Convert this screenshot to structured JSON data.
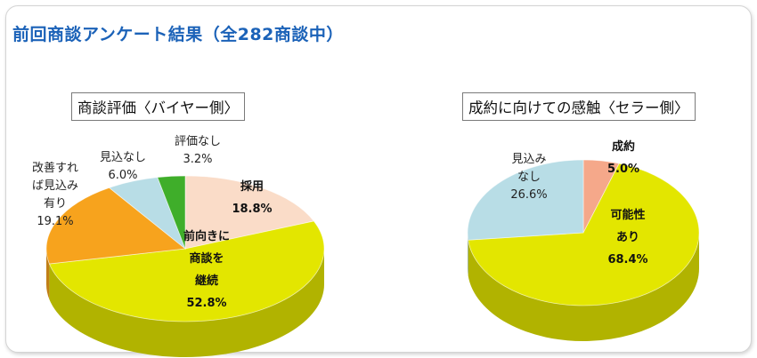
{
  "main_title": "前回商談アンケート結果（全282商談中）",
  "colors": {
    "title_blue": "#1b62b8",
    "yellow": "#e3e600",
    "yellow_side": "#b9bb00",
    "orange": "#f7a31d",
    "light_blue": "#b8dde6",
    "green": "#3fae2a",
    "pink": "#fadcc8",
    "salmon": "#f5a88a"
  },
  "chart_data": [
    {
      "type": "pie",
      "title": "商談評価〈バイヤー側〉",
      "slices": [
        {
          "label_lines": [
            "採用"
          ],
          "pct": "18.8%",
          "value": 18.8,
          "color": "#fadcc8"
        },
        {
          "label_lines": [
            "前向きに",
            "商談を",
            "継続"
          ],
          "pct": "52.8%",
          "value": 52.8,
          "color": "#e3e600"
        },
        {
          "label_lines": [
            "改善すれ",
            "ば見込み",
            "有り"
          ],
          "pct": "19.1%",
          "value": 19.1,
          "color": "#f7a31d"
        },
        {
          "label_lines": [
            "見込なし"
          ],
          "pct": "6.0%",
          "value": 6.0,
          "color": "#b8dde6"
        },
        {
          "label_lines": [
            "評価なし"
          ],
          "pct": "3.2%",
          "value": 3.2,
          "color": "#3fae2a"
        }
      ]
    },
    {
      "type": "pie",
      "title": "成約に向けての感触〈セラー側〉",
      "slices": [
        {
          "label_lines": [
            "成約"
          ],
          "pct": "5.0%",
          "value": 5.0,
          "color": "#f5a88a"
        },
        {
          "label_lines": [
            "可能性",
            "あり"
          ],
          "pct": "68.4%",
          "value": 68.4,
          "color": "#e3e600"
        },
        {
          "label_lines": [
            "見込み",
            "なし"
          ],
          "pct": "26.6%",
          "value": 26.6,
          "color": "#b8dde6"
        }
      ]
    }
  ]
}
